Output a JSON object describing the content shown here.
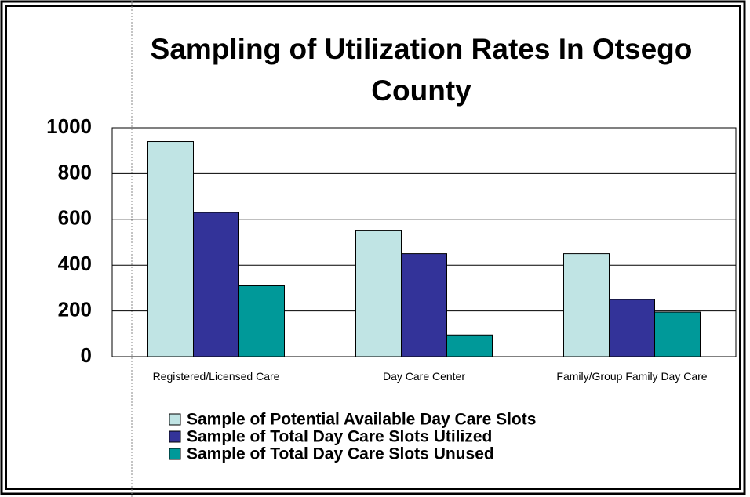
{
  "chart_data": {
    "type": "bar",
    "title": "Sampling of Utilization Rates In Otsego County",
    "categories": [
      "Registered/Licensed Care",
      "Day Care Center",
      "Family/Group Family Day Care"
    ],
    "series": [
      {
        "name": "Sample of Potential Available Day Care Slots",
        "color": "#c0e4e4",
        "values": [
          940,
          550,
          450
        ]
      },
      {
        "name": "Sample of Total Day Care Slots Utilized",
        "color": "#333399",
        "values": [
          630,
          450,
          250
        ]
      },
      {
        "name": "Sample of Total Day Care Slots Unused",
        "color": "#009999",
        "values": [
          310,
          95,
          195
        ]
      }
    ],
    "ylim": [
      0,
      1000
    ],
    "yticks": [
      0,
      200,
      400,
      600,
      800,
      1000
    ],
    "grid": true,
    "legend": "bottom"
  }
}
